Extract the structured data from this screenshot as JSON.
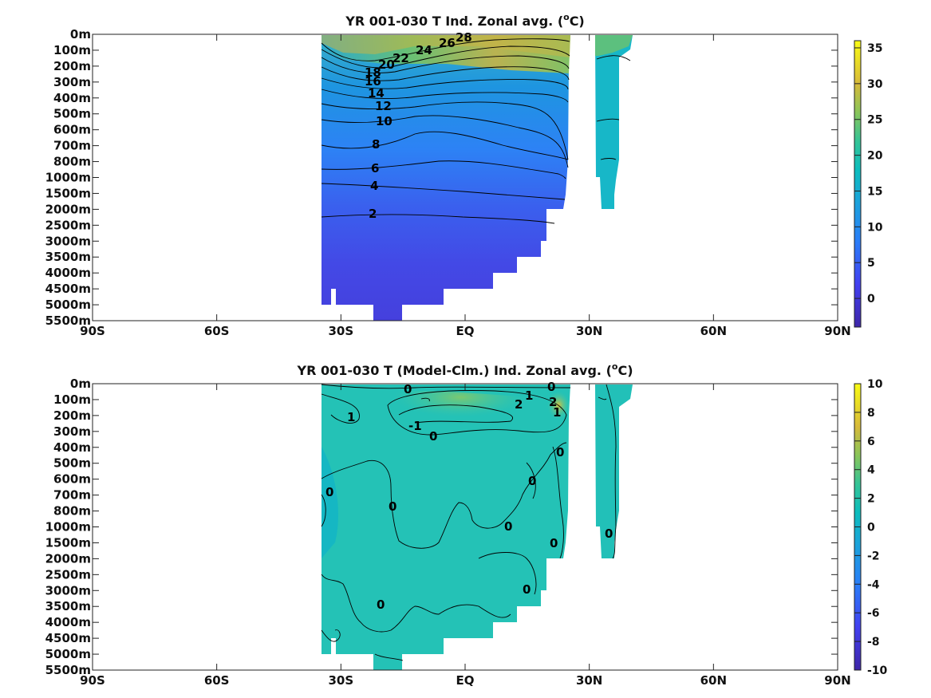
{
  "chart_data": [
    {
      "type": "heatmap",
      "title_main": "YR 001-030 T Ind. Zonal avg. (",
      "title_sup": "o",
      "title_end": "C)",
      "x_ticks": [
        "90S",
        "60S",
        "30S",
        "EQ",
        "30N",
        "60N",
        "90N"
      ],
      "x_tick_values": [
        -90,
        -60,
        -30,
        0,
        30,
        60,
        90
      ],
      "y_ticks": [
        "0m",
        "100m",
        "200m",
        "300m",
        "400m",
        "500m",
        "600m",
        "700m",
        "800m",
        "1000m",
        "1500m",
        "2000m",
        "2500m",
        "3000m",
        "3500m",
        "4000m",
        "4500m",
        "5000m",
        "5500m"
      ],
      "colorbar_ticks": [
        "35",
        "30",
        "25",
        "20",
        "15",
        "10",
        "5",
        "0"
      ],
      "colorbar_values": [
        35,
        30,
        25,
        20,
        15,
        10,
        5,
        0
      ],
      "colorbar_range": [
        -4,
        36
      ],
      "contour_labels": [
        "28",
        "26",
        "24",
        "22",
        "20",
        "18",
        "16",
        "14",
        "12",
        "10",
        "8",
        "6",
        "4",
        "2"
      ],
      "colormap": "parula"
    },
    {
      "type": "heatmap",
      "title_main": "YR 001-030 T (Model-Clm.) Ind. Zonal avg. (",
      "title_sup": "o",
      "title_end": "C)",
      "x_ticks": [
        "90S",
        "60S",
        "30S",
        "EQ",
        "30N",
        "60N",
        "90N"
      ],
      "x_tick_values": [
        -90,
        -60,
        -30,
        0,
        30,
        60,
        90
      ],
      "y_ticks": [
        "0m",
        "100m",
        "200m",
        "300m",
        "400m",
        "500m",
        "600m",
        "700m",
        "800m",
        "1000m",
        "1500m",
        "2000m",
        "2500m",
        "3000m",
        "3500m",
        "4000m",
        "4500m",
        "5000m",
        "5500m"
      ],
      "colorbar_ticks": [
        "10",
        "8",
        "6",
        "4",
        "2",
        "0",
        "-2",
        "-4",
        "-6",
        "-8",
        "-10"
      ],
      "colorbar_values": [
        10,
        8,
        6,
        4,
        2,
        0,
        -2,
        -4,
        -6,
        -8,
        -10
      ],
      "colorbar_range": [
        -10,
        10
      ],
      "contour_labels": [
        "0",
        "0",
        "1",
        "2",
        "2",
        "1",
        "1",
        "-1",
        "0",
        "0",
        "0",
        "0",
        "0",
        "0",
        "0",
        "0",
        "0",
        "0"
      ],
      "colormap": "parula"
    }
  ]
}
